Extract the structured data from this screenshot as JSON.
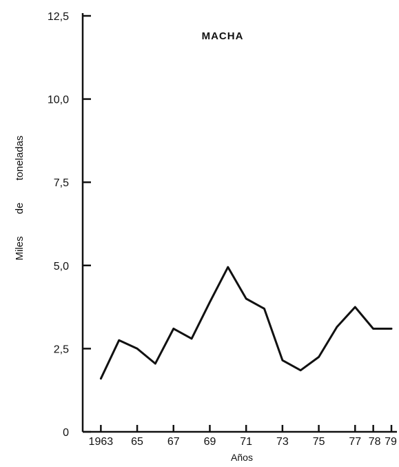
{
  "chart_data": {
    "type": "line",
    "title": "MACHA",
    "xlabel": "Años",
    "ylabel": "Miles de toneladas",
    "ylim": [
      0,
      12.5
    ],
    "xlim": [
      1962,
      1979.2
    ],
    "y_ticks": [
      0,
      2.5,
      5.0,
      7.5,
      10.0,
      12.5
    ],
    "y_tick_labels": [
      "0",
      "2,5",
      "5,0",
      "7,5",
      "10,0",
      "12,5"
    ],
    "x_ticks": [
      1963,
      1965,
      1967,
      1969,
      1971,
      1973,
      1975,
      1977,
      1978,
      1979
    ],
    "x_tick_labels": [
      "1963",
      "65",
      "67",
      "69",
      "71",
      "73",
      "75",
      "77",
      "78",
      "79"
    ],
    "grid": false,
    "series": [
      {
        "x": [
          1963,
          1964,
          1965,
          1966,
          1967,
          1968,
          1969,
          1970,
          1971,
          1972,
          1973,
          1974,
          1975,
          1976,
          1977,
          1978,
          1979
        ],
        "y": [
          1.6,
          2.75,
          2.5,
          2.05,
          3.1,
          2.8,
          3.9,
          4.95,
          4.0,
          3.7,
          2.15,
          1.85,
          2.25,
          3.15,
          3.75,
          3.1,
          3.1
        ]
      }
    ],
    "line_color": "#111111"
  }
}
